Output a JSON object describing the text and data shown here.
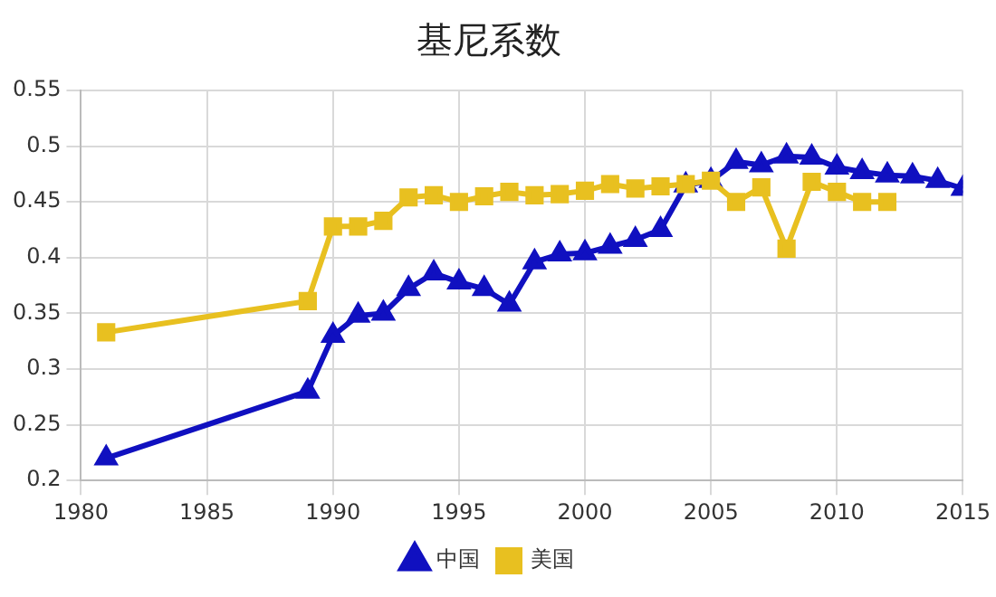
{
  "chart_data": {
    "type": "line",
    "title": "基尼系数",
    "xlim": [
      1980,
      2015
    ],
    "xticks": [
      1980,
      1985,
      1990,
      1995,
      2000,
      2005,
      2010,
      2015
    ],
    "ylim": [
      0.2,
      0.55
    ],
    "yticks": [
      0.2,
      0.25,
      0.3,
      0.35,
      0.4,
      0.45,
      0.5,
      0.55
    ],
    "grid": true,
    "legend": "bottom",
    "series": [
      {
        "name": "中国",
        "color": "#1010c0",
        "marker": "triangle",
        "x": [
          1981,
          1989,
          1990,
          1991,
          1992,
          1993,
          1994,
          1995,
          1996,
          1997,
          1998,
          1999,
          2000,
          2001,
          2002,
          2003,
          2004,
          2005,
          2006,
          2007,
          2008,
          2009,
          2010,
          2011,
          2012,
          2013,
          2014,
          2015
        ],
        "values": [
          0.22,
          0.28,
          0.33,
          0.348,
          0.35,
          0.372,
          0.386,
          0.378,
          0.372,
          0.358,
          0.396,
          0.403,
          0.404,
          0.41,
          0.416,
          0.425,
          0.465,
          0.469,
          0.486,
          0.483,
          0.491,
          0.49,
          0.481,
          0.477,
          0.474,
          0.473,
          0.469,
          0.462
        ]
      },
      {
        "name": "美国",
        "color": "#e8c020",
        "marker": "square",
        "x": [
          1981,
          1989,
          1990,
          1991,
          1992,
          1993,
          1994,
          1995,
          1996,
          1997,
          1998,
          1999,
          2000,
          2001,
          2002,
          2003,
          2004,
          2005,
          2006,
          2007,
          2008,
          2009,
          2010,
          2011,
          2012
        ],
        "values": [
          0.333,
          0.361,
          0.428,
          0.428,
          0.433,
          0.454,
          0.456,
          0.45,
          0.455,
          0.459,
          0.456,
          0.457,
          0.46,
          0.466,
          0.462,
          0.464,
          0.466,
          0.469,
          0.45,
          0.463,
          0.408,
          0.468,
          0.459,
          0.45,
          0.45
        ]
      }
    ]
  }
}
